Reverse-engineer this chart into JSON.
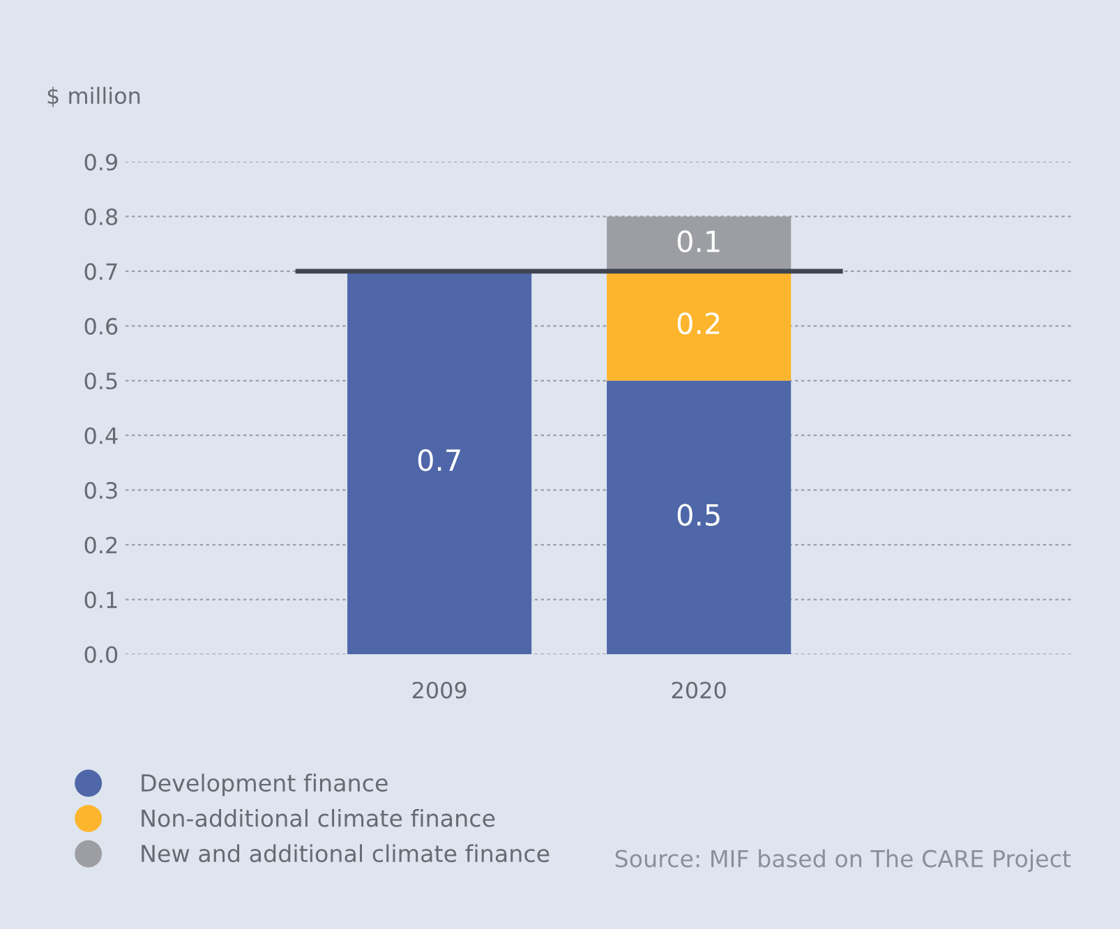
{
  "chart_data": {
    "type": "bar",
    "stacked": true,
    "ylabel": "$ million",
    "categories": [
      "2009",
      "2020"
    ],
    "series": [
      {
        "name": "Development finance",
        "color": "#4f67a8",
        "values": [
          0.7,
          0.5
        ]
      },
      {
        "name": "Non-additional climate finance",
        "color": "#fdb52d",
        "values": [
          null,
          0.2
        ]
      },
      {
        "name": "New and additional climate finance",
        "color": "#9d9ea3",
        "values": [
          null,
          0.1
        ]
      }
    ],
    "ylim": [
      0,
      0.9
    ],
    "yticks": [
      {
        "value": 0,
        "label": "0.0"
      },
      0.1,
      0.2,
      0.3,
      0.4,
      0.5,
      0.6,
      0.7,
      0.8,
      0.9
    ],
    "ref_lines": [
      {
        "axis": "y",
        "value": 0.7,
        "color": "#3d4450"
      }
    ],
    "grid": "y",
    "data_labels": true,
    "legend": "bottom left",
    "marker": "circle",
    "annotations": [
      "Source: MIF based on The CARE Project"
    ]
  }
}
